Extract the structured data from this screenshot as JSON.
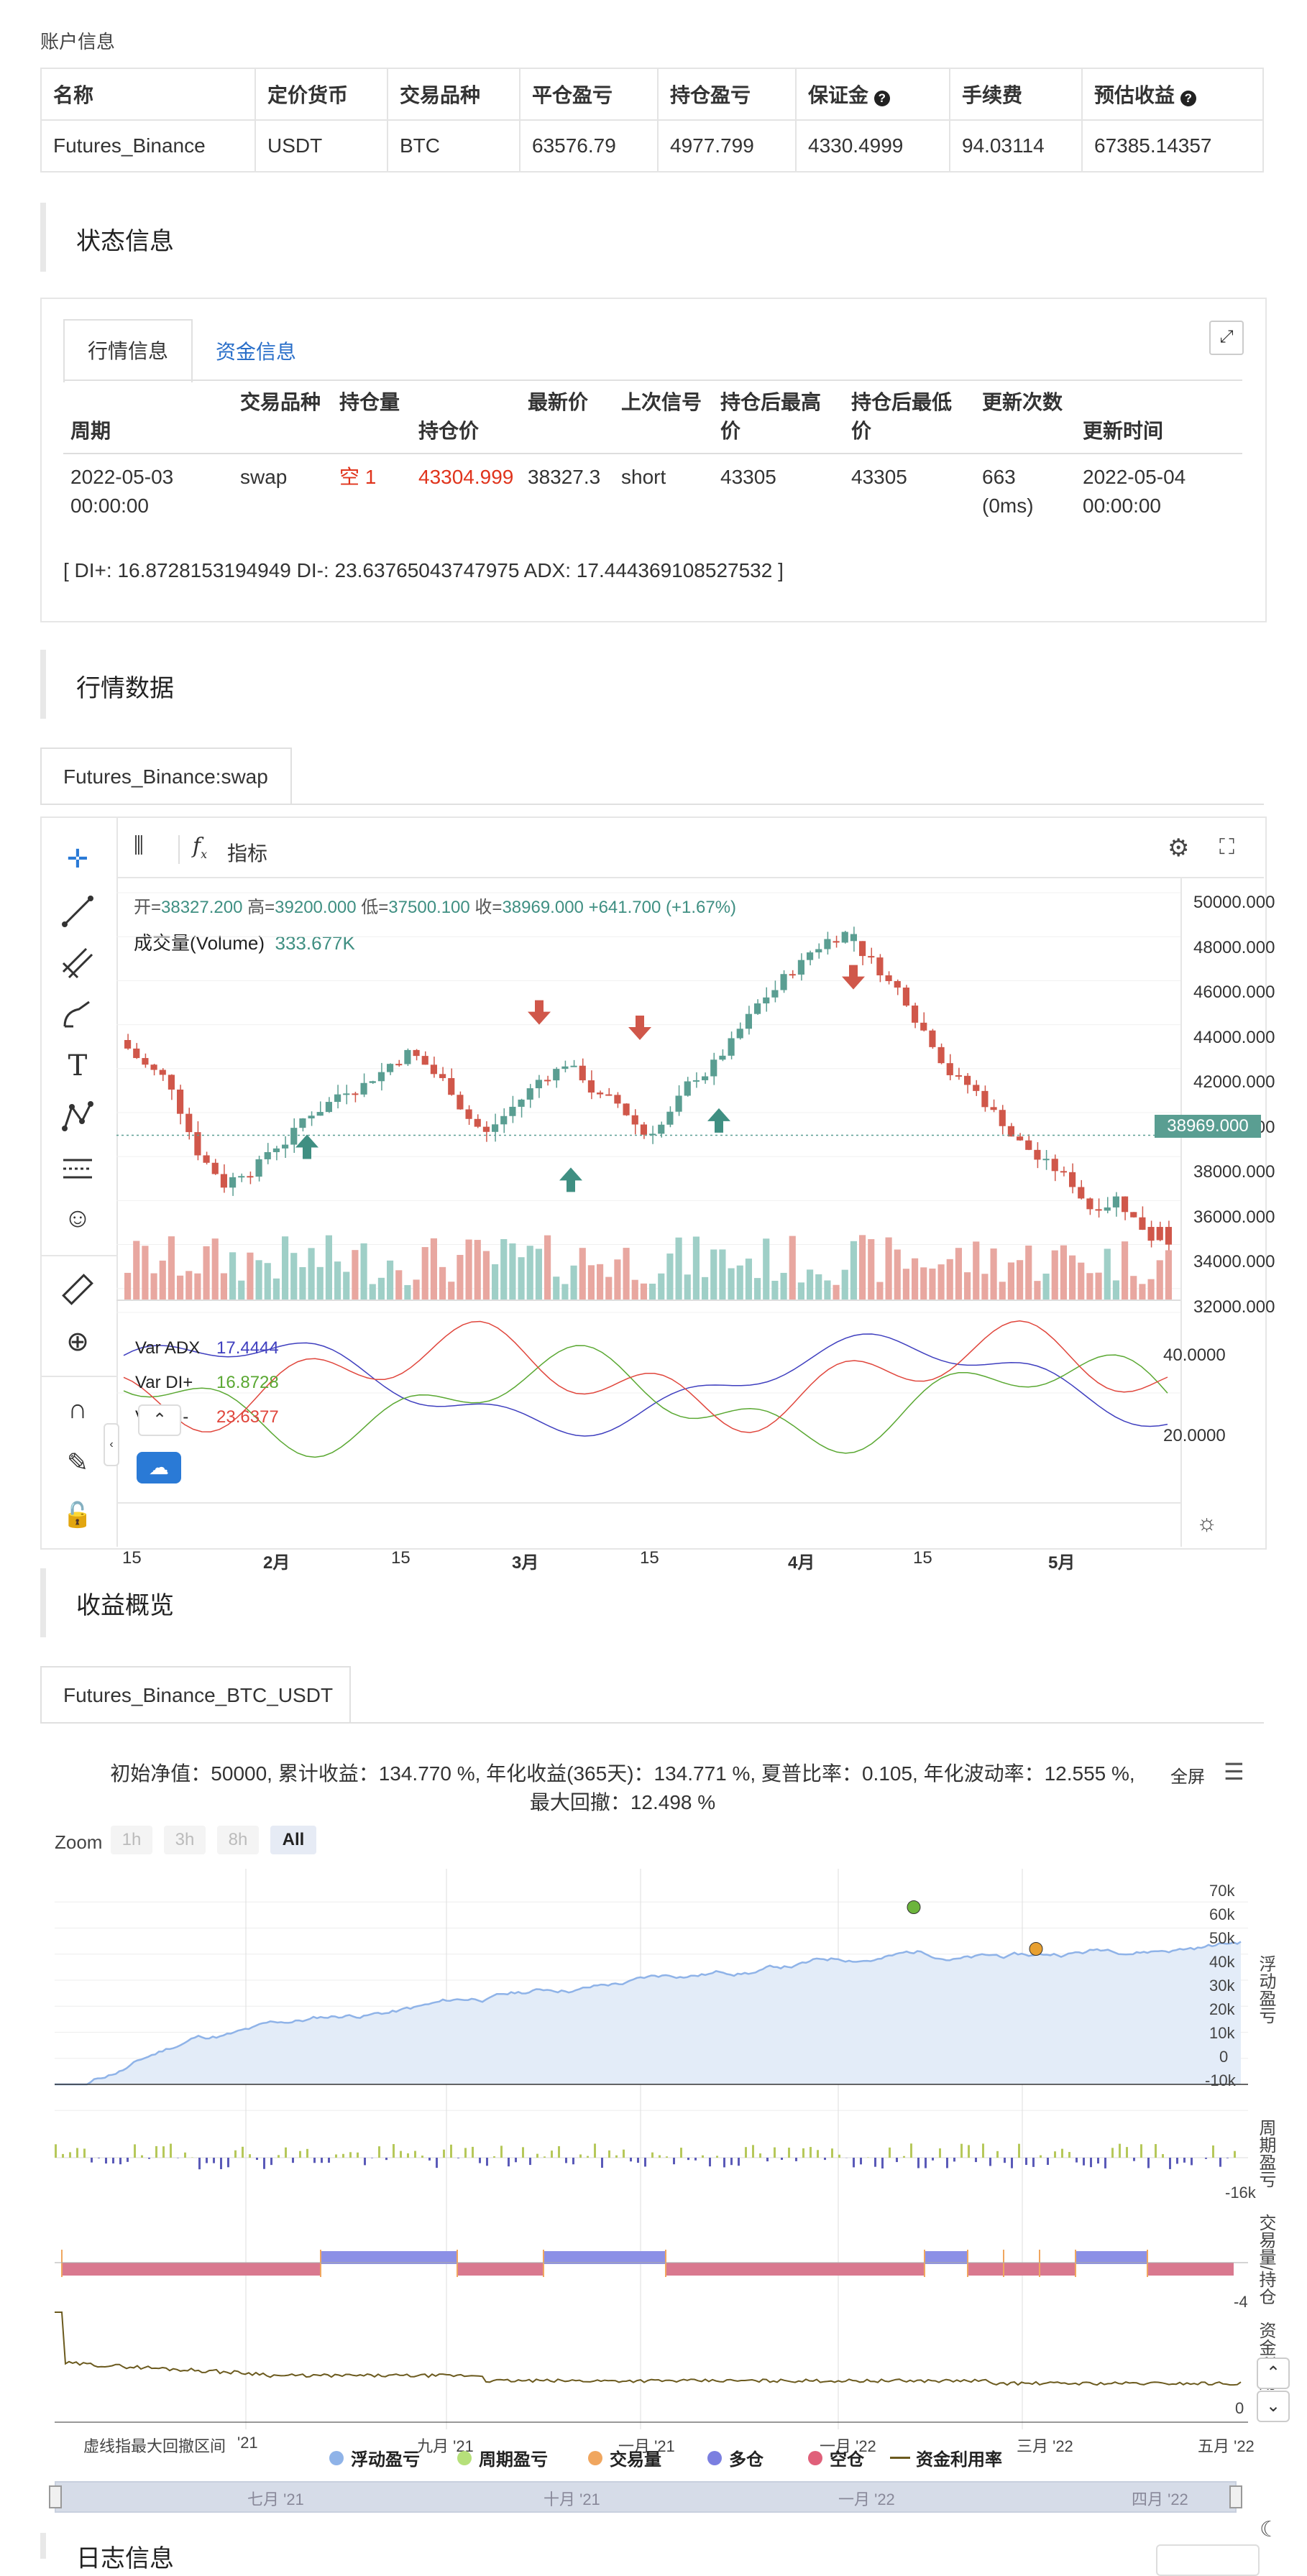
{
  "account": {
    "title": "账户信息",
    "headers": [
      "名称",
      "定价货币",
      "交易品种",
      "平仓盈亏",
      "持仓盈亏",
      "保证金",
      "手续费",
      "预估收益"
    ],
    "row": [
      "Futures_Binance",
      "USDT",
      "BTC",
      "63576.79",
      "4977.799",
      "4330.4999",
      "94.03114",
      "67385.14357"
    ]
  },
  "status": {
    "title": "状态信息",
    "tabs": [
      "行情信息",
      "资金信息"
    ],
    "headers": {
      "period": "周期",
      "symbol": "交易品种",
      "position": "持仓量",
      "position_price": "持仓价",
      "last_price": "最新价",
      "last_signal": "上次信号",
      "high_after": "持仓后最高价",
      "low_after": "持仓后最低价",
      "update_count": "更新次数",
      "update_time": "更新时间"
    },
    "row": {
      "period": "2022-05-03 00:00:00",
      "symbol": "swap",
      "position": "空 1",
      "position_price": "43304.999",
      "last_price": "38327.3",
      "last_signal": "short",
      "high_after": "43305",
      "low_after": "43305",
      "update_count": "663 (0ms)",
      "update_time": "2022-05-04 00:00:00"
    },
    "indicator_line": "[ DI+: 16.8728153194949 DI-: 23.63765043747975 ADX: 17.444369108527532 ]"
  },
  "market": {
    "title": "行情数据",
    "tab": "Futures_Binance:swap",
    "indicator_btn": "指标",
    "ohlc": {
      "open_label": "开=",
      "open": "38327.200",
      "high_label": "高=",
      "high": "39200.000",
      "low_label": "低=",
      "low": "37500.100",
      "close_label": "收=",
      "close": "38969.000",
      "change": "+641.700 (+1.67%)"
    },
    "volume_label": "成交量(Volume)",
    "volume_value": "333.677K",
    "price_axis": [
      "50000.000",
      "48000.000",
      "46000.000",
      "44000.000",
      "42000.000",
      "40000.000",
      "38000.000",
      "36000.000",
      "34000.000",
      "32000.000"
    ],
    "current_price": "38969.000",
    "ind_axis": [
      "40.0000",
      "20.0000"
    ],
    "ind_legend": [
      {
        "name": "Var ADX",
        "value": "17.4444",
        "color": "#3f3fbf"
      },
      {
        "name": "Var DI+",
        "value": "16.8728",
        "color": "#5aa832"
      },
      {
        "name": "Var DI-",
        "value": "23.6377",
        "color": "#e0463c"
      }
    ],
    "time_axis": [
      "15",
      "2月",
      "15",
      "3月",
      "15",
      "4月",
      "15",
      "5月"
    ],
    "colors": {
      "up": "#5a9e92",
      "down": "#d0574a",
      "vol_up": "#9fcfc7",
      "vol_down": "#e8a7a0"
    }
  },
  "returns": {
    "title": "收益概览",
    "tab": "Futures_Binance_BTC_USDT",
    "summary_line1": "初始净值：50000, 累计收益：134.770 %, 年化收益(365天)：134.771 %, 夏普比率：0.105, 年化波动率：12.555 %,",
    "summary_line2": "最大回撤：12.498 %",
    "fullscreen": "全屏",
    "zoom_label": "Zoom",
    "zoom_buttons": [
      "1h",
      "3h",
      "8h",
      "All"
    ],
    "pnl_axis": [
      "70k",
      "60k",
      "50k",
      "40k",
      "30k",
      "20k",
      "10k",
      "0",
      "-10k"
    ],
    "pnl_title": "浮动盈亏",
    "period_axis": "-16k",
    "period_title": "周期盈亏",
    "pos_axis": "-4",
    "pos_title": "交易量/持仓",
    "util_axis": "0",
    "util_title": "资金利用率",
    "x_labels": [
      "虚线指最大回撤区间",
      "'21",
      "九月 '21",
      "一月 '21",
      "一月 '22",
      "三月 '22",
      "五月 '22"
    ],
    "legend": [
      {
        "name": "浮动盈亏",
        "color": "#8fb3e8"
      },
      {
        "name": "周期盈亏",
        "color": "#b6e07a"
      },
      {
        "name": "交易量",
        "color": "#f0a65f"
      },
      {
        "name": "多仓",
        "color": "#7b7fe0"
      },
      {
        "name": "空仓",
        "color": "#e0607a"
      },
      {
        "name": "资金利用率",
        "color": "#6b5a1e"
      }
    ],
    "navigator": [
      "七月 '21",
      "十月 '21",
      "一月 '22",
      "四月 '22"
    ]
  },
  "logs": {
    "title": "日志信息"
  }
}
